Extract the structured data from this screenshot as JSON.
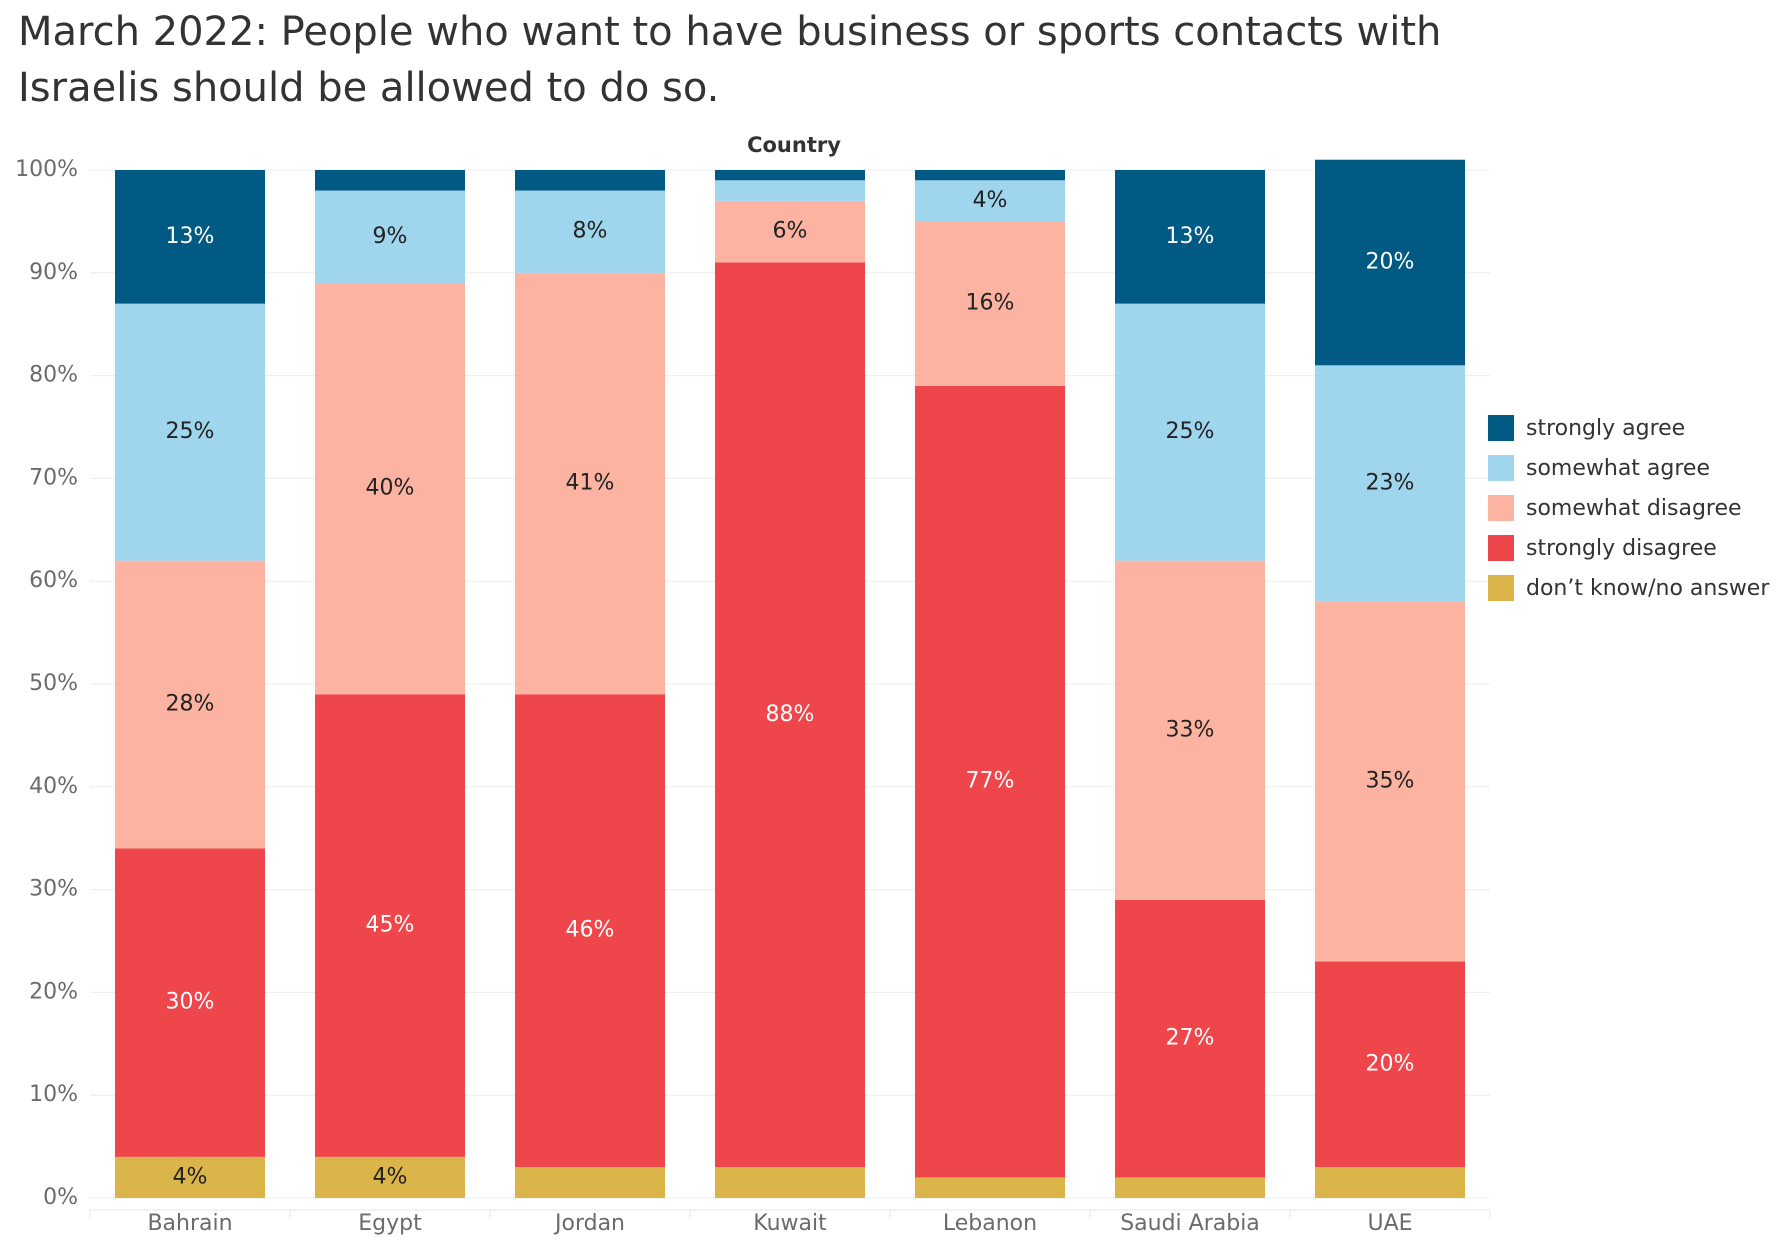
{
  "chart_data": {
    "type": "bar",
    "stacked": true,
    "normalized": true,
    "title": "March 2022: People who want to have business or sports contacts with Israelis should be allowed to do so.",
    "column_header": "Country",
    "categories": [
      "Bahrain",
      "Egypt",
      "Jordan",
      "Kuwait",
      "Lebanon",
      "Saudi Arabia",
      "UAE"
    ],
    "yticks": [
      "0%",
      "10%",
      "20%",
      "30%",
      "40%",
      "50%",
      "60%",
      "70%",
      "80%",
      "90%",
      "100%"
    ],
    "ylim": [
      0,
      100
    ],
    "grid": true,
    "legend_position": "right",
    "series": [
      {
        "name": "don’t know/no answer",
        "color": "#DBB54A",
        "label_color": "#222222",
        "values": [
          4,
          4,
          3,
          3,
          2,
          2,
          3
        ],
        "labels": [
          "4%",
          "4%",
          "",
          "",
          "",
          "",
          ""
        ]
      },
      {
        "name": "strongly disagree",
        "color": "#EF464C",
        "label_color": "#ffffff",
        "values": [
          30,
          45,
          46,
          88,
          77,
          27,
          20
        ],
        "labels": [
          "30%",
          "45%",
          "46%",
          "88%",
          "77%",
          "27%",
          "20%"
        ]
      },
      {
        "name": "somewhat disagree",
        "color": "#FDB3A1",
        "label_color": "#222222",
        "values": [
          28,
          40,
          41,
          6,
          16,
          33,
          35
        ],
        "labels": [
          "28%",
          "40%",
          "41%",
          "6%",
          "16%",
          "33%",
          "35%"
        ]
      },
      {
        "name": "somewhat agree",
        "color": "#A0D5EE",
        "label_color": "#222222",
        "values": [
          25,
          9,
          8,
          2,
          4,
          25,
          23
        ],
        "labels": [
          "25%",
          "9%",
          "8%",
          "",
          "4%",
          "25%",
          "23%"
        ]
      },
      {
        "name": "strongly agree",
        "color": "#005A84",
        "label_color": "#ffffff",
        "values": [
          13,
          2,
          2,
          1,
          1,
          13,
          20
        ],
        "labels": [
          "13%",
          "",
          "",
          "",
          "",
          "13%",
          "20%"
        ]
      }
    ],
    "legend_order": [
      "strongly agree",
      "somewhat agree",
      "somewhat disagree",
      "strongly disagree",
      "don’t know/no answer"
    ]
  }
}
